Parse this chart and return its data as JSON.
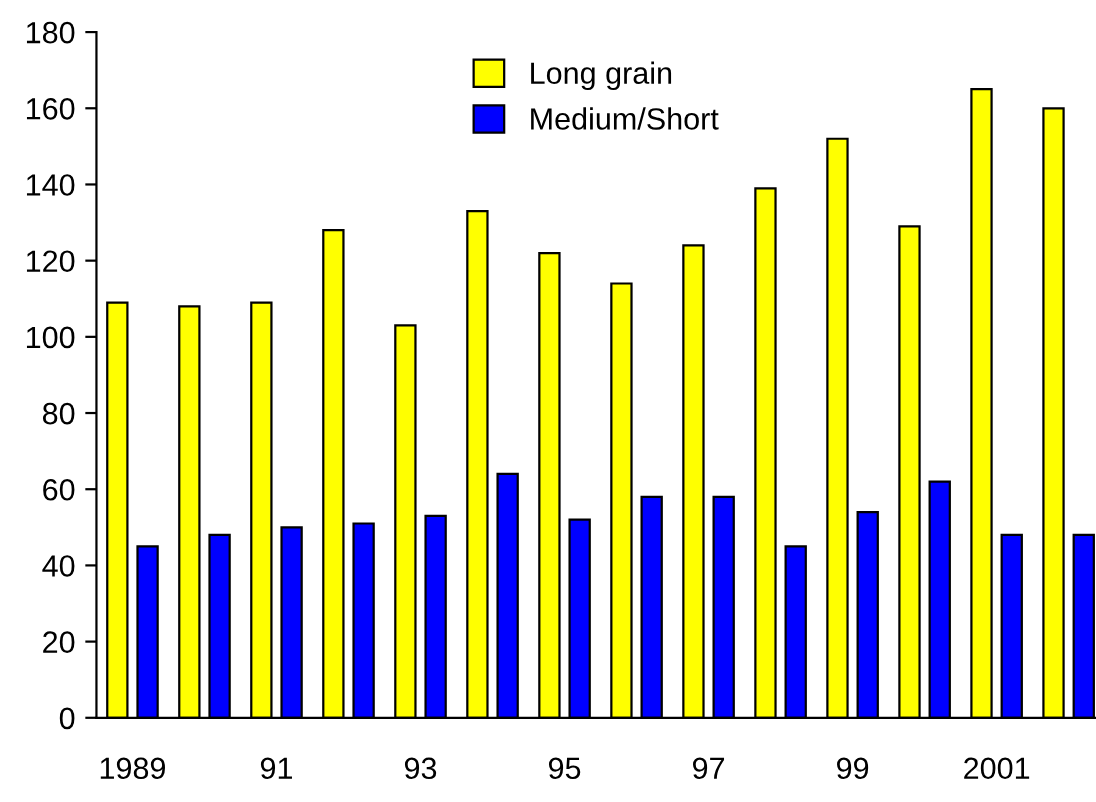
{
  "chart_data": {
    "type": "bar",
    "categories": [
      "1989",
      null,
      "91",
      null,
      "93",
      null,
      "95",
      null,
      "97",
      null,
      "99",
      null,
      "2001",
      null
    ],
    "series": [
      {
        "name": "Long grain",
        "color": "#ffff00",
        "values": [
          109,
          108,
          109,
          128,
          103,
          133,
          122,
          114,
          124,
          139,
          152,
          129,
          165,
          160
        ]
      },
      {
        "name": "Medium/Short",
        "color": "#0000ff",
        "values": [
          45,
          48,
          50,
          51,
          53,
          64,
          52,
          58,
          58,
          45,
          54,
          62,
          48,
          48
        ]
      }
    ],
    "ylim": [
      0,
      180
    ],
    "yticks": [
      0,
      20,
      40,
      60,
      80,
      100,
      120,
      140,
      160,
      180
    ],
    "grid": false,
    "legend": "top"
  }
}
